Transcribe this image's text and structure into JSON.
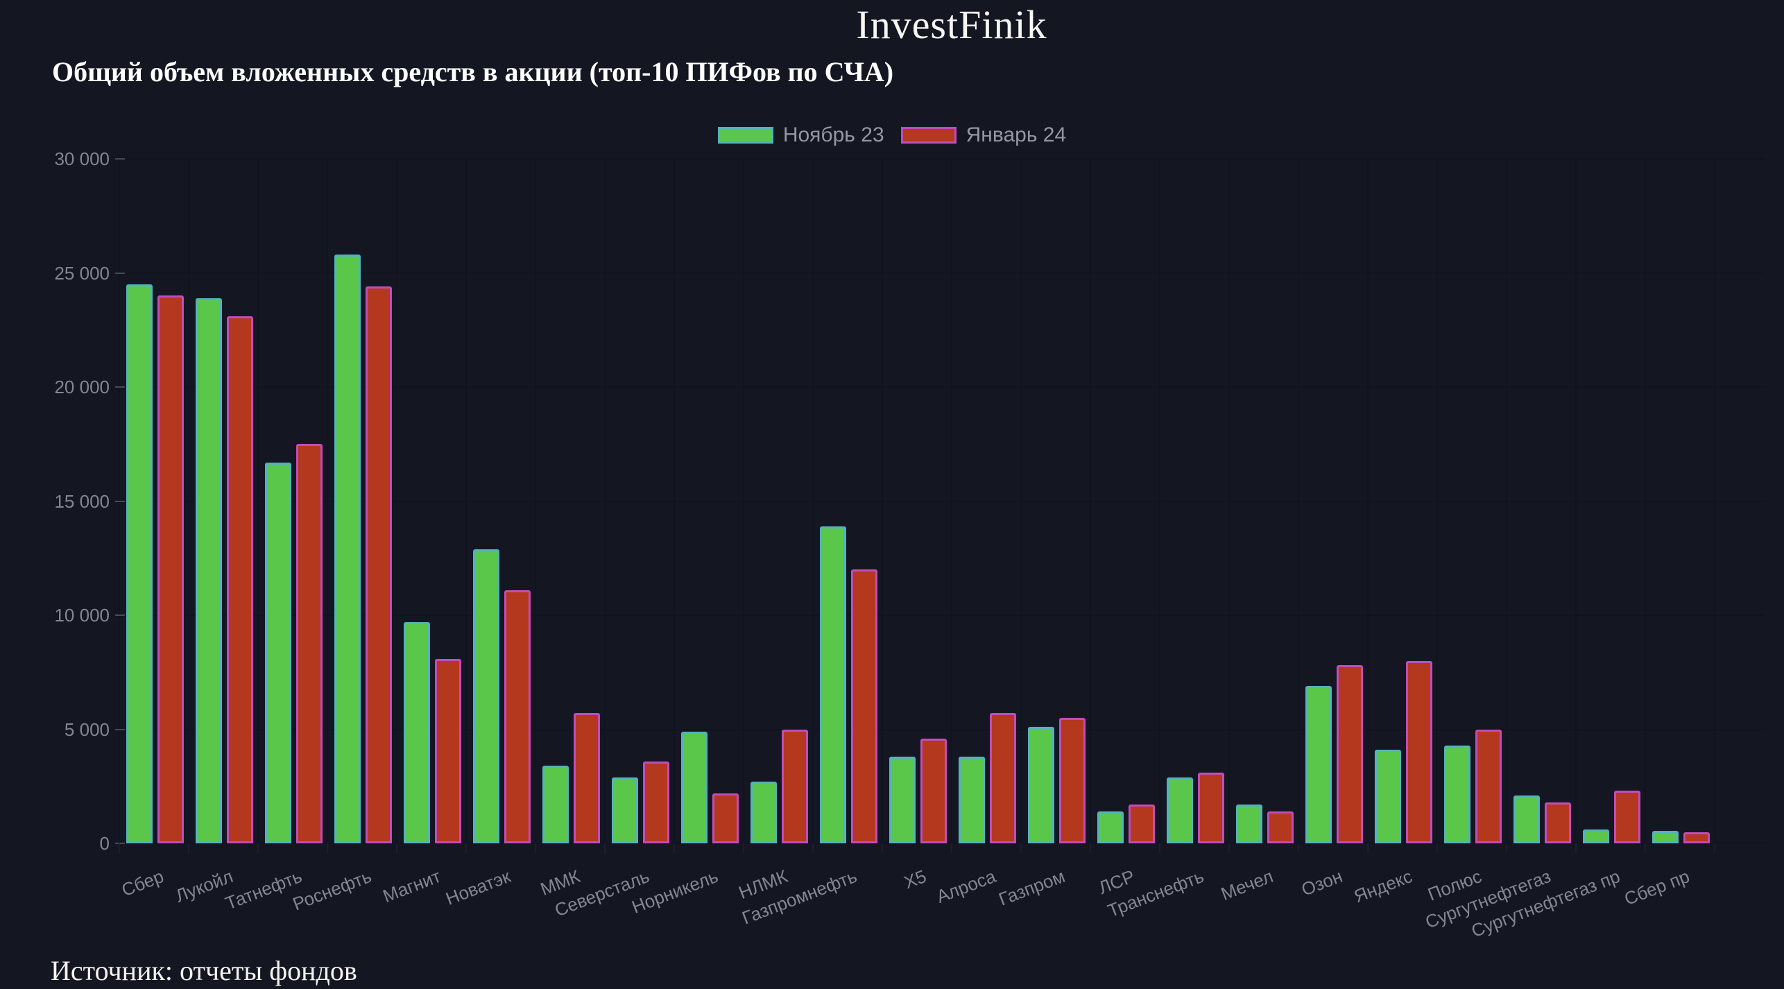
{
  "page": {
    "title": "InvestFinik",
    "source_note": "Источник: отчеты фондов"
  },
  "colors": {
    "background": "#141722",
    "grid_line": "#101420",
    "axis_tick": "#464b57",
    "axis_label": "#83868f",
    "legend_label": "#94979f",
    "text": "#f5f3ef"
  },
  "chart_data": {
    "type": "bar",
    "title": "Общий объем вложенных средств в акции (топ-10 ПИФов по СЧА)",
    "legend_position": "top-center",
    "grid": true,
    "xlabel": "",
    "ylabel": "",
    "ylim": [
      0,
      30000
    ],
    "y_ticks": [
      0,
      5000,
      10000,
      15000,
      20000,
      25000,
      30000
    ],
    "y_tick_labels": [
      "0",
      "5 000",
      "10 000",
      "15 000",
      "20 000",
      "25 000",
      "30 000"
    ],
    "categories": [
      "Сбер",
      "Лукойл",
      "Татнефть",
      "Роснефть",
      "Магнит",
      "Новатэк",
      "ММК",
      "Северсталь",
      "Норникель",
      "НЛМК",
      "Газпромнефть",
      "X5",
      "Алроса",
      "Газпром",
      "ЛСР",
      "Транснефть",
      "Мечел",
      "Озон",
      "Яндекс",
      "Полюс",
      "Сургутнефтегаз",
      "Сургутнефтегаз пр",
      "Сбер пр"
    ],
    "series": [
      {
        "name": "Ноябрь 23",
        "fill_color": "#5ac74b",
        "border_color": "#52b3be",
        "values": [
          24500,
          23900,
          16700,
          25800,
          9700,
          12900,
          3400,
          2900,
          4900,
          2700,
          13900,
          3800,
          3800,
          5100,
          1400,
          2900,
          1700,
          6900,
          4100,
          4300,
          2100,
          600,
          550
        ]
      },
      {
        "name": "Январь 24",
        "fill_color": "#b4381d",
        "border_color": "#c24cba",
        "values": [
          24000,
          23100,
          17500,
          24400,
          8100,
          11100,
          5700,
          3600,
          2200,
          5000,
          12000,
          4600,
          5700,
          5500,
          1700,
          3100,
          1400,
          7800,
          8000,
          5000,
          1800,
          2300,
          500
        ]
      }
    ]
  }
}
